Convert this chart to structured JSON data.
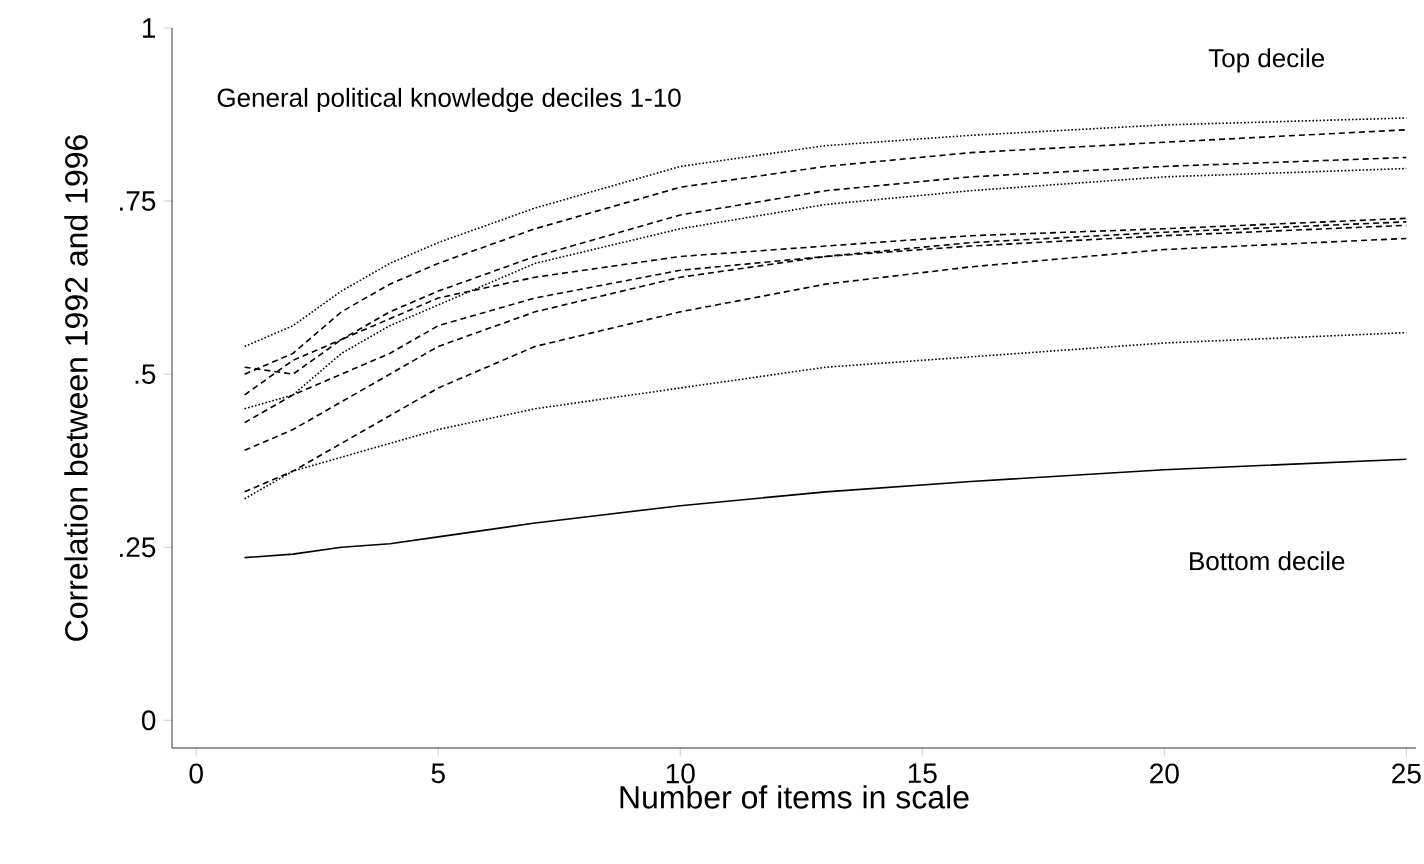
{
  "chart_data": {
    "type": "line",
    "xlabel": "Number of items in scale",
    "ylabel": "Correlation between 1992 and 1996",
    "annotations": [
      "General political knowledge deciles 1-10",
      "Top decile",
      "Bottom decile"
    ],
    "x": [
      1,
      2,
      3,
      4,
      5,
      7,
      10,
      13,
      16,
      20,
      25
    ],
    "series": [
      {
        "color": "#000000",
        "line_style": "dotted",
        "values": [
          0.54,
          0.57,
          0.62,
          0.66,
          0.69,
          0.74,
          0.8,
          0.83,
          0.845,
          0.86,
          0.87
        ]
      },
      {
        "color": "#000000",
        "line_style": "dashed",
        "values": [
          0.5,
          0.53,
          0.59,
          0.63,
          0.66,
          0.71,
          0.77,
          0.8,
          0.82,
          0.835,
          0.853
        ]
      },
      {
        "color": "#000000",
        "line_style": "dashed",
        "values": [
          0.47,
          0.52,
          0.55,
          0.59,
          0.62,
          0.67,
          0.73,
          0.765,
          0.785,
          0.8,
          0.813
        ]
      },
      {
        "color": "#000000",
        "line_style": "dotted",
        "values": [
          0.45,
          0.47,
          0.53,
          0.57,
          0.6,
          0.66,
          0.71,
          0.745,
          0.765,
          0.785,
          0.797
        ]
      },
      {
        "color": "#000000",
        "line_style": "dashed",
        "values": [
          0.51,
          0.5,
          0.55,
          0.58,
          0.61,
          0.64,
          0.67,
          0.685,
          0.7,
          0.71,
          0.725
        ]
      },
      {
        "color": "#000000",
        "line_style": "dashed",
        "values": [
          0.43,
          0.47,
          0.5,
          0.53,
          0.57,
          0.61,
          0.65,
          0.67,
          0.69,
          0.705,
          0.72
        ]
      },
      {
        "color": "#000000",
        "line_style": "dashed",
        "values": [
          0.39,
          0.42,
          0.46,
          0.5,
          0.54,
          0.59,
          0.64,
          0.67,
          0.685,
          0.7,
          0.715
        ]
      },
      {
        "color": "#000000",
        "line_style": "dashed",
        "values": [
          0.33,
          0.36,
          0.4,
          0.44,
          0.48,
          0.54,
          0.59,
          0.63,
          0.655,
          0.68,
          0.696
        ]
      },
      {
        "color": "#000000",
        "line_style": "dotted",
        "values": [
          0.32,
          0.36,
          0.38,
          0.4,
          0.42,
          0.45,
          0.48,
          0.51,
          0.525,
          0.545,
          0.56
        ]
      },
      {
        "color": "#000000",
        "line_style": "solid",
        "values": [
          0.235,
          0.24,
          0.25,
          0.255,
          0.265,
          0.285,
          0.31,
          0.33,
          0.345,
          0.362,
          0.377
        ]
      }
    ],
    "xlim": [
      -0.5,
      25.2
    ],
    "ylim": [
      -0.04,
      1.0
    ],
    "xticks": [
      0,
      5,
      10,
      15,
      20,
      25
    ],
    "yticks": [
      0,
      {
        "value": 0.25,
        "label": ".25"
      },
      {
        "value": 0.5,
        "label": ".5"
      },
      {
        "value": 0.75,
        "label": ".75"
      },
      1
    ],
    "grid": false
  }
}
